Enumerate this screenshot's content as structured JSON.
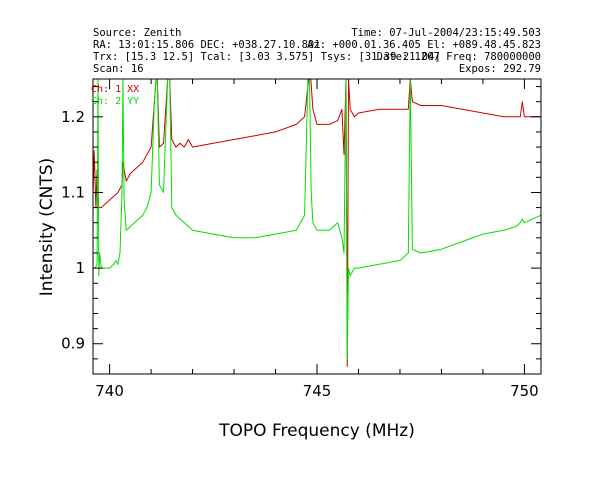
{
  "header": {
    "left": [
      "Source: Zenith",
      "RA: 13:01:15.806 DEC: +038.27.10.801",
      "Trx: [15.3 12.5]  Tcal: [3.03 3.575]  Tsys: [31.39 21.04]",
      "Scan: 16"
    ],
    "right": [
      "Time: 07-Jul-2004/23:15:49.503",
      "Az: +000.01.36.405  El: +089.48.45.823",
      "Date: 1207 Freq: 780000000",
      "Expos: 292.79"
    ]
  },
  "chart_data": {
    "type": "line",
    "xlabel": "TOPO Frequency (MHz)",
    "ylabel": "Intensity (CNTS)",
    "xlim": [
      739.6,
      750.4
    ],
    "ylim": [
      0.86,
      1.25
    ],
    "xticks": [
      740,
      745,
      750
    ],
    "yticks": [
      0.9,
      1,
      1.1,
      1.2
    ],
    "grid": false,
    "legend_position": "top-left",
    "series": [
      {
        "name": "Ch: 1 XX",
        "color": "#cc0000",
        "x": [
          739.6,
          739.63,
          739.67,
          739.7,
          739.72,
          739.75,
          739.8,
          739.9,
          740.0,
          740.1,
          740.2,
          740.3,
          740.32,
          740.4,
          740.5,
          740.6,
          740.7,
          740.8,
          740.9,
          741.0,
          741.08,
          741.12,
          741.15,
          741.2,
          741.3,
          741.4,
          741.45,
          741.5,
          741.6,
          741.7,
          741.8,
          741.9,
          742.0,
          742.5,
          743.0,
          743.5,
          744.0,
          744.5,
          744.7,
          744.8,
          744.85,
          744.9,
          745.0,
          745.3,
          745.5,
          745.6,
          745.65,
          745.7,
          745.73,
          745.76,
          745.8,
          745.9,
          746.0,
          746.5,
          747.0,
          747.2,
          747.25,
          747.3,
          747.5,
          748.0,
          748.5,
          749.0,
          749.5,
          749.8,
          749.9,
          749.95,
          750.0,
          750.2,
          750.4
        ],
        "y": [
          1.095,
          1.155,
          1.08,
          1.13,
          1.085,
          1.08,
          1.08,
          1.085,
          1.09,
          1.095,
          1.1,
          1.11,
          1.14,
          1.115,
          1.125,
          1.13,
          1.135,
          1.14,
          1.15,
          1.16,
          1.22,
          1.25,
          1.25,
          1.16,
          1.165,
          1.25,
          1.25,
          1.17,
          1.16,
          1.165,
          1.16,
          1.17,
          1.16,
          1.165,
          1.17,
          1.175,
          1.18,
          1.19,
          1.2,
          1.25,
          1.25,
          1.21,
          1.19,
          1.19,
          1.195,
          1.21,
          1.15,
          1.25,
          0.87,
          1.25,
          1.21,
          1.2,
          1.205,
          1.21,
          1.21,
          1.21,
          1.25,
          1.22,
          1.215,
          1.215,
          1.21,
          1.205,
          1.2,
          1.2,
          1.2,
          1.22,
          1.2,
          1.2,
          1.2
        ]
      },
      {
        "name": "Ch: 2 YY",
        "color": "#00e000",
        "x": [
          739.6,
          739.65,
          739.7,
          739.72,
          739.74,
          739.76,
          739.8,
          739.9,
          740.0,
          740.1,
          740.15,
          740.2,
          740.25,
          740.3,
          740.32,
          740.35,
          740.4,
          740.5,
          740.6,
          740.7,
          740.8,
          740.9,
          741.0,
          741.08,
          741.12,
          741.15,
          741.2,
          741.3,
          741.4,
          741.45,
          741.5,
          741.6,
          741.8,
          742.0,
          742.5,
          743.0,
          743.5,
          744.0,
          744.5,
          744.7,
          744.78,
          744.82,
          744.86,
          744.9,
          745.0,
          745.3,
          745.5,
          745.6,
          745.65,
          745.7,
          745.73,
          745.76,
          745.8,
          745.9,
          746.0,
          746.5,
          747.0,
          747.2,
          747.25,
          747.3,
          747.5,
          748.0,
          748.5,
          749.0,
          749.5,
          749.8,
          749.9,
          749.95,
          750.0,
          750.2,
          750.4
        ],
        "y": [
          1.0,
          1.0,
          1.005,
          1.25,
          0.99,
          1.02,
          1.0,
          1.0,
          1.0,
          1.005,
          1.01,
          1.005,
          1.02,
          1.1,
          1.25,
          1.09,
          1.05,
          1.055,
          1.06,
          1.065,
          1.07,
          1.08,
          1.1,
          1.22,
          1.25,
          1.25,
          1.11,
          1.1,
          1.25,
          1.25,
          1.08,
          1.07,
          1.06,
          1.05,
          1.045,
          1.04,
          1.04,
          1.045,
          1.05,
          1.07,
          1.25,
          1.25,
          1.1,
          1.06,
          1.05,
          1.05,
          1.06,
          1.04,
          1.02,
          1.25,
          0.88,
          1.0,
          0.99,
          1.0,
          1.0,
          1.005,
          1.01,
          1.02,
          1.25,
          1.025,
          1.02,
          1.025,
          1.035,
          1.045,
          1.05,
          1.055,
          1.06,
          1.065,
          1.06,
          1.065,
          1.07
        ]
      }
    ]
  }
}
